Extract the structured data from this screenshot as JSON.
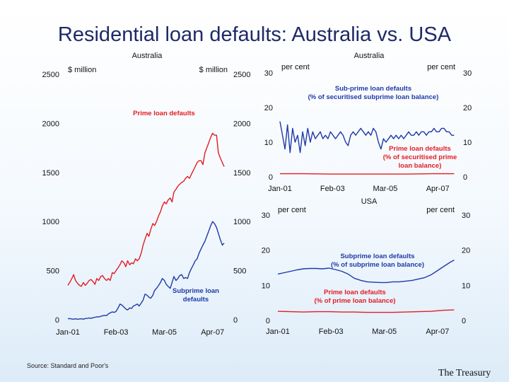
{
  "slide": {
    "title": "Residential loan defaults: Australia vs. USA",
    "source": "Source: Standard and Poor's",
    "footer": "The Treasury"
  },
  "colors": {
    "prime": "#e31c23",
    "subprime": "#1e3aa8",
    "text": "#111111"
  },
  "chart_data": [
    {
      "id": "left",
      "type": "line",
      "title": "Australia",
      "left_unit": "$ million",
      "right_unit": "$ million",
      "yticks": [
        0,
        500,
        1000,
        1500,
        2000,
        2500
      ],
      "ylim": [
        0,
        2500
      ],
      "xlim": [
        2001.0,
        2007.9
      ],
      "xticks": [
        {
          "label": "Jan-01",
          "x": 2001.0
        },
        {
          "label": "Feb-03",
          "x": 2003.08
        },
        {
          "label": "Mar-05",
          "x": 2005.17
        },
        {
          "label": "Apr-07",
          "x": 2007.25
        }
      ],
      "series": [
        {
          "name": "Prime loan defaults",
          "color": "prime",
          "label_lines": [
            "Prime loan defaults"
          ],
          "x": [
            2001.0,
            2001.08,
            2001.17,
            2001.25,
            2001.33,
            2001.42,
            2001.5,
            2001.58,
            2001.67,
            2001.75,
            2001.83,
            2001.92,
            2002.0,
            2002.08,
            2002.17,
            2002.25,
            2002.33,
            2002.42,
            2002.5,
            2002.58,
            2002.67,
            2002.75,
            2002.83,
            2002.92,
            2003.0,
            2003.08,
            2003.17,
            2003.25,
            2003.33,
            2003.42,
            2003.5,
            2003.58,
            2003.67,
            2003.75,
            2003.83,
            2003.92,
            2004.0,
            2004.08,
            2004.17,
            2004.25,
            2004.33,
            2004.42,
            2004.5,
            2004.58,
            2004.67,
            2004.75,
            2004.83,
            2004.92,
            2005.0,
            2005.08,
            2005.17,
            2005.25,
            2005.33,
            2005.42,
            2005.5,
            2005.58,
            2005.67,
            2005.75,
            2005.83,
            2005.92,
            2006.0,
            2006.08,
            2006.17,
            2006.25,
            2006.33,
            2006.42,
            2006.5,
            2006.58,
            2006.67,
            2006.75,
            2006.83,
            2006.92,
            2007.0,
            2007.08,
            2007.17,
            2007.25,
            2007.33,
            2007.42,
            2007.5,
            2007.58,
            2007.67,
            2007.75
          ],
          "values": [
            350,
            380,
            420,
            460,
            400,
            370,
            350,
            340,
            380,
            350,
            370,
            400,
            410,
            390,
            360,
            420,
            400,
            440,
            450,
            420,
            400,
            420,
            400,
            480,
            470,
            500,
            530,
            560,
            600,
            580,
            540,
            600,
            560,
            580,
            570,
            620,
            600,
            620,
            680,
            760,
            820,
            880,
            850,
            920,
            980,
            960,
            1000,
            1060,
            1100,
            1160,
            1200,
            1180,
            1220,
            1240,
            1200,
            1300,
            1330,
            1360,
            1380,
            1400,
            1410,
            1440,
            1460,
            1440,
            1480,
            1520,
            1560,
            1600,
            1620,
            1620,
            1580,
            1700,
            1750,
            1800,
            1860,
            1900,
            1880,
            1880,
            1700,
            1650,
            1600,
            1560
          ]
        },
        {
          "name": "Subprime loan defaults",
          "color": "subprime",
          "label_lines": [
            "Subprime loan",
            "defaults"
          ],
          "x": [
            2001.0,
            2001.08,
            2001.17,
            2001.25,
            2001.33,
            2001.42,
            2001.5,
            2001.58,
            2001.67,
            2001.75,
            2001.83,
            2001.92,
            2002.0,
            2002.08,
            2002.17,
            2002.25,
            2002.33,
            2002.42,
            2002.5,
            2002.58,
            2002.67,
            2002.75,
            2002.83,
            2002.92,
            2003.0,
            2003.08,
            2003.17,
            2003.25,
            2003.33,
            2003.42,
            2003.5,
            2003.58,
            2003.67,
            2003.75,
            2003.83,
            2003.92,
            2004.0,
            2004.08,
            2004.17,
            2004.25,
            2004.33,
            2004.42,
            2004.5,
            2004.58,
            2004.67,
            2004.75,
            2004.83,
            2004.92,
            2005.0,
            2005.08,
            2005.17,
            2005.25,
            2005.33,
            2005.42,
            2005.5,
            2005.58,
            2005.67,
            2005.75,
            2005.83,
            2005.92,
            2006.0,
            2006.08,
            2006.17,
            2006.25,
            2006.33,
            2006.42,
            2006.5,
            2006.58,
            2006.67,
            2006.75,
            2006.83,
            2006.92,
            2007.0,
            2007.08,
            2007.17,
            2007.25,
            2007.33,
            2007.42,
            2007.5,
            2007.58,
            2007.67,
            2007.75
          ],
          "values": [
            10,
            12,
            8,
            6,
            10,
            5,
            8,
            10,
            6,
            12,
            14,
            18,
            15,
            20,
            25,
            30,
            28,
            35,
            40,
            45,
            42,
            60,
            70,
            80,
            75,
            85,
            120,
            160,
            150,
            130,
            110,
            100,
            120,
            115,
            140,
            150,
            160,
            140,
            170,
            200,
            260,
            250,
            230,
            220,
            250,
            300,
            320,
            350,
            380,
            420,
            400,
            360,
            340,
            320,
            380,
            440,
            400,
            420,
            450,
            460,
            420,
            430,
            420,
            480,
            520,
            560,
            600,
            620,
            680,
            720,
            760,
            800,
            850,
            900,
            960,
            1000,
            980,
            940,
            880,
            820,
            760,
            780
          ]
        }
      ]
    },
    {
      "id": "right-top",
      "type": "line",
      "title": "Australia",
      "left_unit": "per cent",
      "right_unit": "per cent",
      "yticks": [
        0,
        10,
        20,
        30
      ],
      "ylim": [
        0,
        30
      ],
      "xlim": [
        2001.0,
        2008.0
      ],
      "xticks": [
        {
          "label": "Jan-01",
          "x": 2001.0
        },
        {
          "label": "Feb-03",
          "x": 2003.08
        },
        {
          "label": "Mar-05",
          "x": 2005.17
        },
        {
          "label": "Apr-07",
          "x": 2007.25
        }
      ],
      "series": [
        {
          "name": "Sub-prime loan defaults",
          "color": "subprime",
          "label_lines": [
            "Sub-prime loan defaults",
            "(% of securitised subprime loan balance)"
          ],
          "x": [
            2001.0,
            2001.1,
            2001.2,
            2001.3,
            2001.4,
            2001.5,
            2001.6,
            2001.7,
            2001.8,
            2001.9,
            2002.0,
            2002.1,
            2002.2,
            2002.3,
            2002.4,
            2002.5,
            2002.6,
            2002.7,
            2002.8,
            2002.9,
            2003.0,
            2003.1,
            2003.2,
            2003.3,
            2003.4,
            2003.5,
            2003.6,
            2003.7,
            2003.8,
            2003.9,
            2004.0,
            2004.1,
            2004.2,
            2004.3,
            2004.4,
            2004.5,
            2004.6,
            2004.7,
            2004.8,
            2004.9,
            2005.0,
            2005.1,
            2005.2,
            2005.3,
            2005.4,
            2005.5,
            2005.6,
            2005.7,
            2005.8,
            2005.9,
            2006.0,
            2006.1,
            2006.2,
            2006.3,
            2006.4,
            2006.5,
            2006.6,
            2006.7,
            2006.8,
            2006.9,
            2007.0,
            2007.1,
            2007.2,
            2007.3,
            2007.4,
            2007.5,
            2007.6,
            2007.7,
            2007.8,
            2007.9
          ],
          "values": [
            16,
            12,
            8,
            15,
            7,
            14,
            10,
            12,
            7,
            13,
            9,
            14,
            10,
            13,
            11,
            12,
            13,
            11,
            12,
            11,
            13,
            12,
            11,
            12,
            13,
            12,
            10,
            9,
            12,
            13,
            12,
            13,
            14,
            13,
            12,
            13,
            12,
            14,
            13,
            10,
            8,
            11,
            10,
            11,
            12,
            11,
            12,
            11,
            12,
            11,
            12,
            13,
            12,
            12,
            13,
            12,
            13,
            13,
            12,
            13,
            13,
            14,
            13,
            13,
            14,
            14,
            13,
            13,
            12,
            12
          ]
        },
        {
          "name": "Prime loan defaults",
          "color": "prime",
          "label_lines": [
            "Prime loan defaults",
            "(% of securitised prime",
            "loan balance)"
          ],
          "x": [
            2001.0,
            2002.0,
            2003.0,
            2004.0,
            2005.0,
            2006.0,
            2007.0,
            2007.9
          ],
          "values": [
            0.9,
            0.9,
            0.8,
            0.8,
            0.8,
            0.8,
            0.9,
            0.9
          ]
        }
      ]
    },
    {
      "id": "right-bottom",
      "type": "line",
      "title": "USA",
      "left_unit": "per cent",
      "right_unit": "per cent",
      "yticks": [
        0,
        10,
        20,
        30
      ],
      "ylim": [
        0,
        30
      ],
      "xlim": [
        2001.0,
        2008.0
      ],
      "xticks": [
        {
          "label": "Jan-01",
          "x": 2001.0
        },
        {
          "label": "Feb-03",
          "x": 2003.08
        },
        {
          "label": "Mar-05",
          "x": 2005.17
        },
        {
          "label": "Apr-07",
          "x": 2007.25
        }
      ],
      "series": [
        {
          "name": "Subprime loan defaults",
          "color": "subprime",
          "label_lines": [
            "Subprime loan defaults",
            "(% of subprime loan balance)"
          ],
          "x": [
            2001.0,
            2001.25,
            2001.5,
            2001.75,
            2002.0,
            2002.25,
            2002.5,
            2002.75,
            2003.0,
            2003.25,
            2003.5,
            2003.75,
            2004.0,
            2004.25,
            2004.5,
            2004.75,
            2005.0,
            2005.25,
            2005.5,
            2005.75,
            2006.0,
            2006.25,
            2006.5,
            2006.75,
            2007.0,
            2007.25,
            2007.5,
            2007.75,
            2007.9
          ],
          "values": [
            13.2,
            13.6,
            14.0,
            14.4,
            14.7,
            14.8,
            14.8,
            14.7,
            14.9,
            14.5,
            14.0,
            13.2,
            12.0,
            11.4,
            11.0,
            10.9,
            10.8,
            10.8,
            11.0,
            11.0,
            11.2,
            11.4,
            11.8,
            12.2,
            13.0,
            14.2,
            15.4,
            16.6,
            17.2
          ]
        },
        {
          "name": "Prime loan defaults",
          "color": "prime",
          "label_lines": [
            "Prime loan defaults",
            "(% of prime loan balance)"
          ],
          "x": [
            2001.0,
            2001.5,
            2002.0,
            2002.5,
            2003.0,
            2003.5,
            2004.0,
            2004.5,
            2005.0,
            2005.5,
            2006.0,
            2006.5,
            2007.0,
            2007.5,
            2007.9
          ],
          "values": [
            2.6,
            2.5,
            2.4,
            2.5,
            2.5,
            2.4,
            2.4,
            2.3,
            2.3,
            2.3,
            2.4,
            2.5,
            2.6,
            2.9,
            3.0
          ]
        }
      ]
    }
  ]
}
